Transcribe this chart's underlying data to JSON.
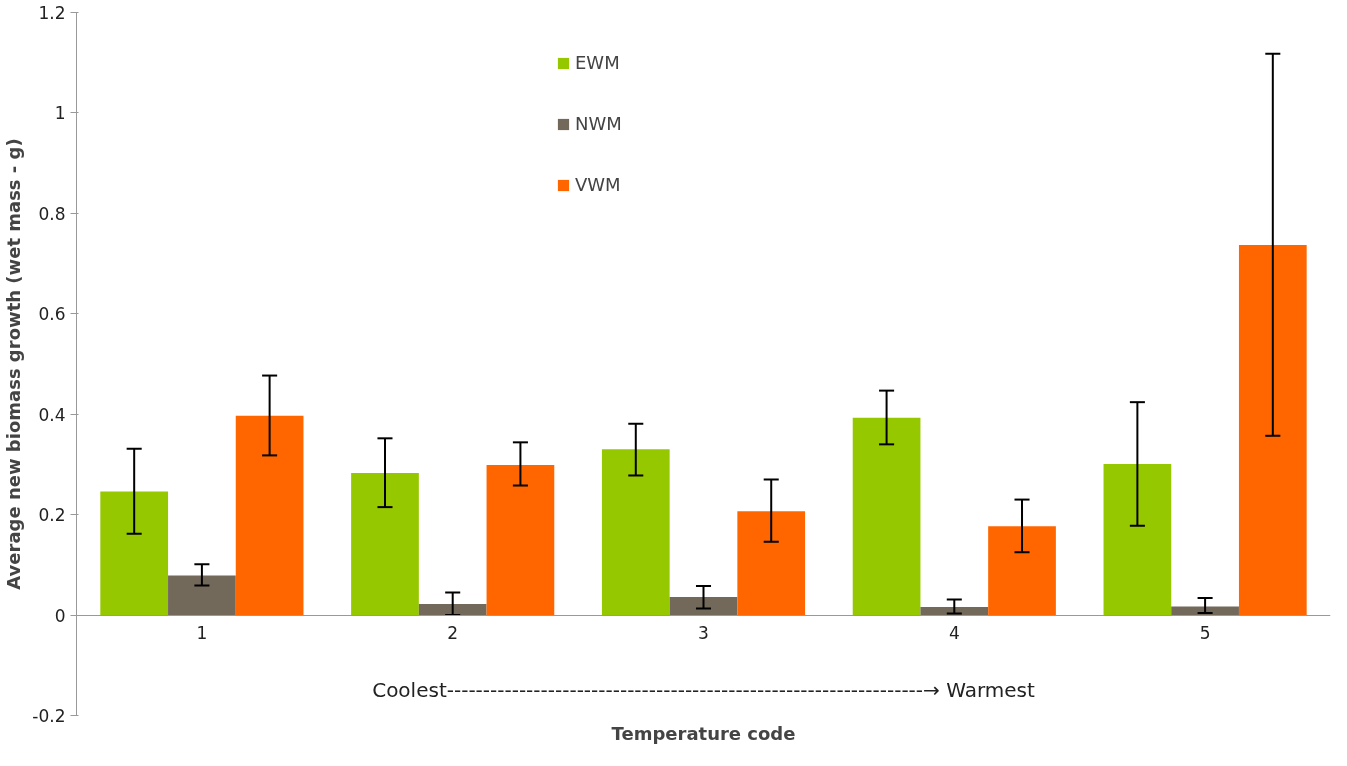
{
  "chart_data": {
    "type": "bar",
    "xlabel": "Temperature code",
    "ylabel": "Average new biomass growth (wet mass - g)",
    "categories": [
      "1",
      "2",
      "3",
      "4",
      "5"
    ],
    "series": [
      {
        "name": "EWM",
        "color": "#96c800",
        "values": [
          0.246,
          0.283,
          0.33,
          0.393,
          0.301
        ],
        "errors": [
          [
            0.162,
            0.331
          ],
          [
            0.215,
            0.352
          ],
          [
            0.278,
            0.381
          ],
          [
            0.34,
            0.447
          ],
          [
            0.178,
            0.424
          ]
        ]
      },
      {
        "name": "NWM",
        "color": "#73695b",
        "values": [
          0.079,
          0.022,
          0.036,
          0.016,
          0.017
        ],
        "errors": [
          [
            0.059,
            0.101
          ],
          [
            0.0,
            0.045
          ],
          [
            0.013,
            0.058
          ],
          [
            0.003,
            0.031
          ],
          [
            0.004,
            0.034
          ]
        ]
      },
      {
        "name": "VWM",
        "color": "#ff6600",
        "values": [
          0.397,
          0.299,
          0.207,
          0.177,
          0.737
        ],
        "errors": [
          [
            0.318,
            0.477
          ],
          [
            0.258,
            0.344
          ],
          [
            0.146,
            0.27
          ],
          [
            0.125,
            0.23
          ],
          [
            0.357,
            1.118
          ]
        ]
      }
    ],
    "ylim": [
      -0.2,
      1.2
    ],
    "yticks": [
      -0.2,
      0,
      0.2,
      0.4,
      0.6,
      0.8,
      1,
      1.2
    ],
    "annotations": [
      "Coolest------------------------------------------------------------------→ Warmest"
    ],
    "grid": false,
    "legend": "top"
  }
}
